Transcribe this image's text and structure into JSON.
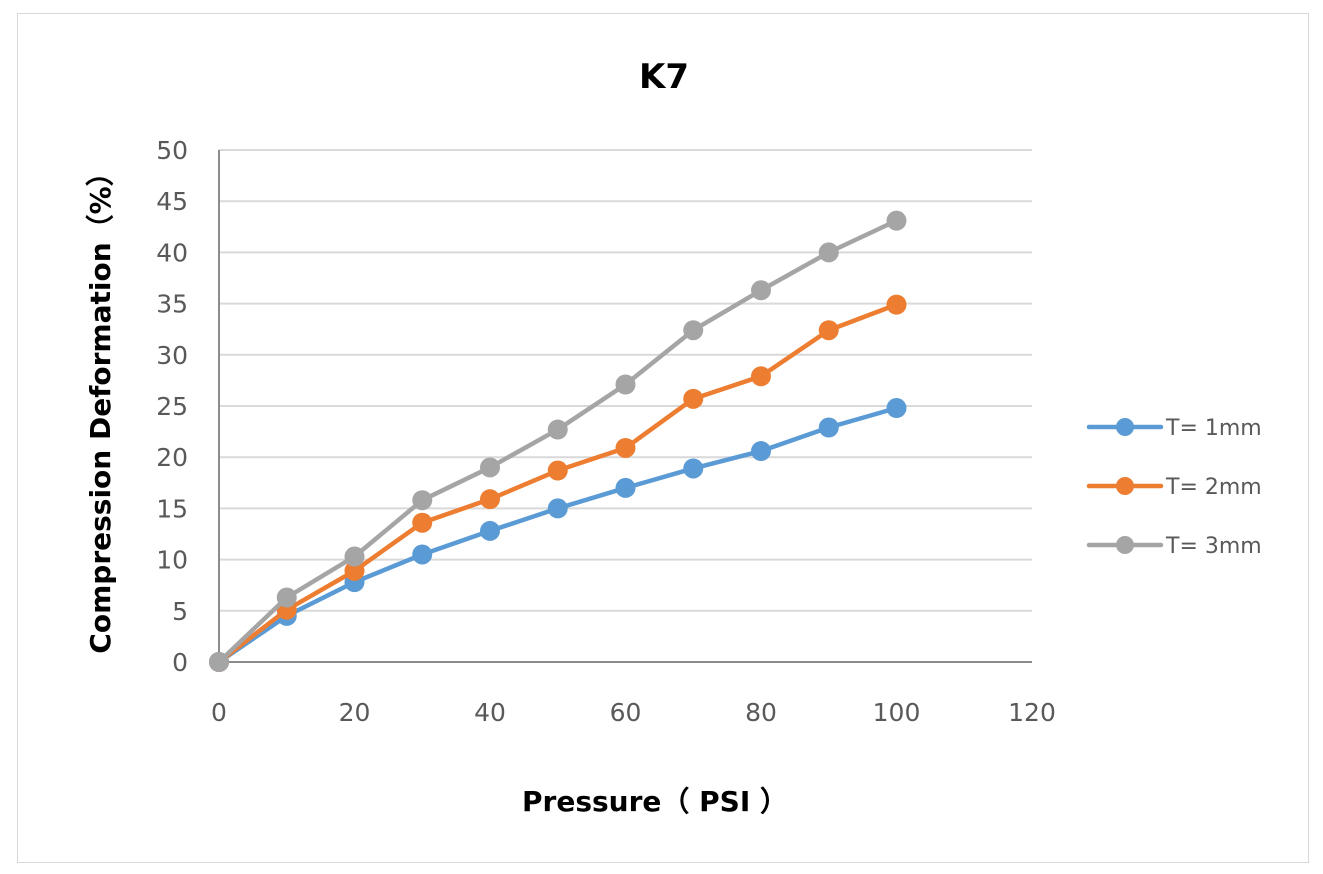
{
  "chart_data": {
    "type": "line",
    "title": "K7",
    "xlabel": "Pressure（ PSI ）",
    "ylabel": "Compression Deformation（%）",
    "xlim": [
      0,
      120
    ],
    "ylim": [
      0,
      50
    ],
    "xticks": [
      0,
      20,
      40,
      60,
      80,
      100,
      120
    ],
    "yticks": [
      0,
      5,
      10,
      15,
      20,
      25,
      30,
      35,
      40,
      45,
      50
    ],
    "grid": "horizontal",
    "legend_position": "right",
    "x": [
      0,
      10,
      20,
      30,
      40,
      50,
      60,
      70,
      80,
      90,
      100
    ],
    "series": [
      {
        "name": "T= 1mm",
        "color": "#5b9bd5",
        "values": [
          0,
          4.5,
          7.8,
          10.5,
          12.8,
          15.0,
          17.0,
          18.9,
          20.6,
          22.9,
          24.8
        ]
      },
      {
        "name": "T= 2mm",
        "color": "#ed7d31",
        "values": [
          0,
          5.1,
          8.9,
          13.6,
          15.9,
          18.7,
          20.9,
          25.7,
          27.9,
          32.4,
          34.9
        ]
      },
      {
        "name": "T= 3mm",
        "color": "#a5a5a5",
        "values": [
          0,
          6.3,
          10.3,
          15.8,
          19.0,
          22.7,
          27.1,
          32.4,
          36.3,
          40.0,
          43.1
        ]
      }
    ]
  }
}
